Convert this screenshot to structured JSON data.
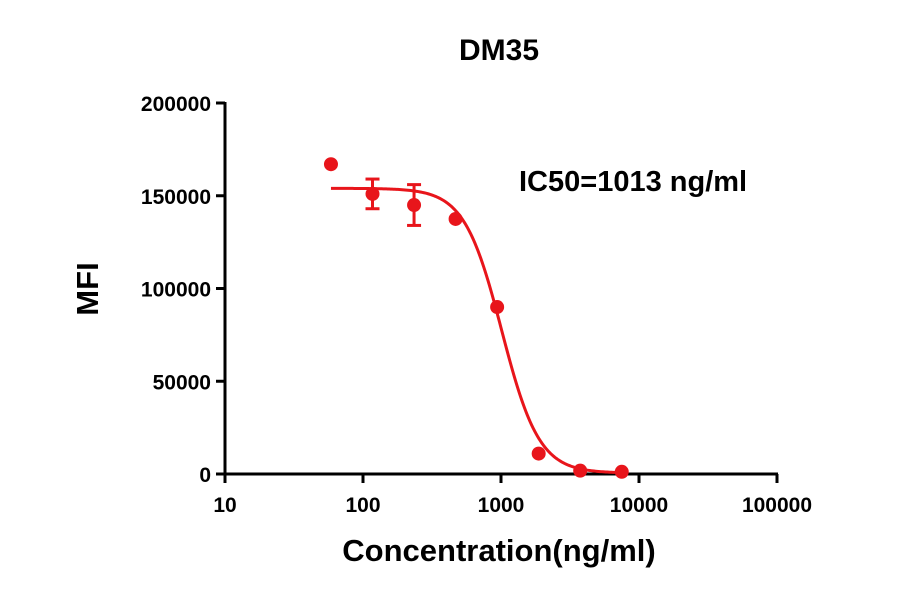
{
  "chart_data": {
    "type": "scatter",
    "title": "DM35",
    "xlabel": "Concentration(ng/ml)",
    "ylabel": "MFI",
    "x_scale": "log",
    "xlim": [
      10,
      100000
    ],
    "ylim": [
      0,
      200000
    ],
    "x_ticks": [
      10,
      100,
      1000,
      10000,
      100000
    ],
    "x_tick_labels": [
      "10",
      "100",
      "1000",
      "10000",
      "100000"
    ],
    "y_ticks": [
      0,
      50000,
      100000,
      150000,
      200000
    ],
    "y_tick_labels": [
      "0",
      "50000",
      "100000",
      "150000",
      "200000"
    ],
    "annotation": "IC50=1013 ng/ml",
    "grid": false,
    "color": "#e8151b",
    "points": [
      {
        "x": 58.6,
        "y": 167000,
        "err": 0
      },
      {
        "x": 117.2,
        "y": 151000,
        "err": 8000
      },
      {
        "x": 234.4,
        "y": 145000,
        "err": 11000
      },
      {
        "x": 468.8,
        "y": 137500,
        "err": 0
      },
      {
        "x": 937.5,
        "y": 90000,
        "err": 0
      },
      {
        "x": 1875,
        "y": 11000,
        "err": 0
      },
      {
        "x": 3750,
        "y": 1800,
        "err": 0
      },
      {
        "x": 7500,
        "y": 1200,
        "err": 0
      }
    ],
    "fit": {
      "model": "4PL",
      "top": 154000,
      "bottom": 500,
      "ic50": 1013,
      "hill": 3.2,
      "x_range": [
        58.6,
        7500
      ]
    }
  }
}
